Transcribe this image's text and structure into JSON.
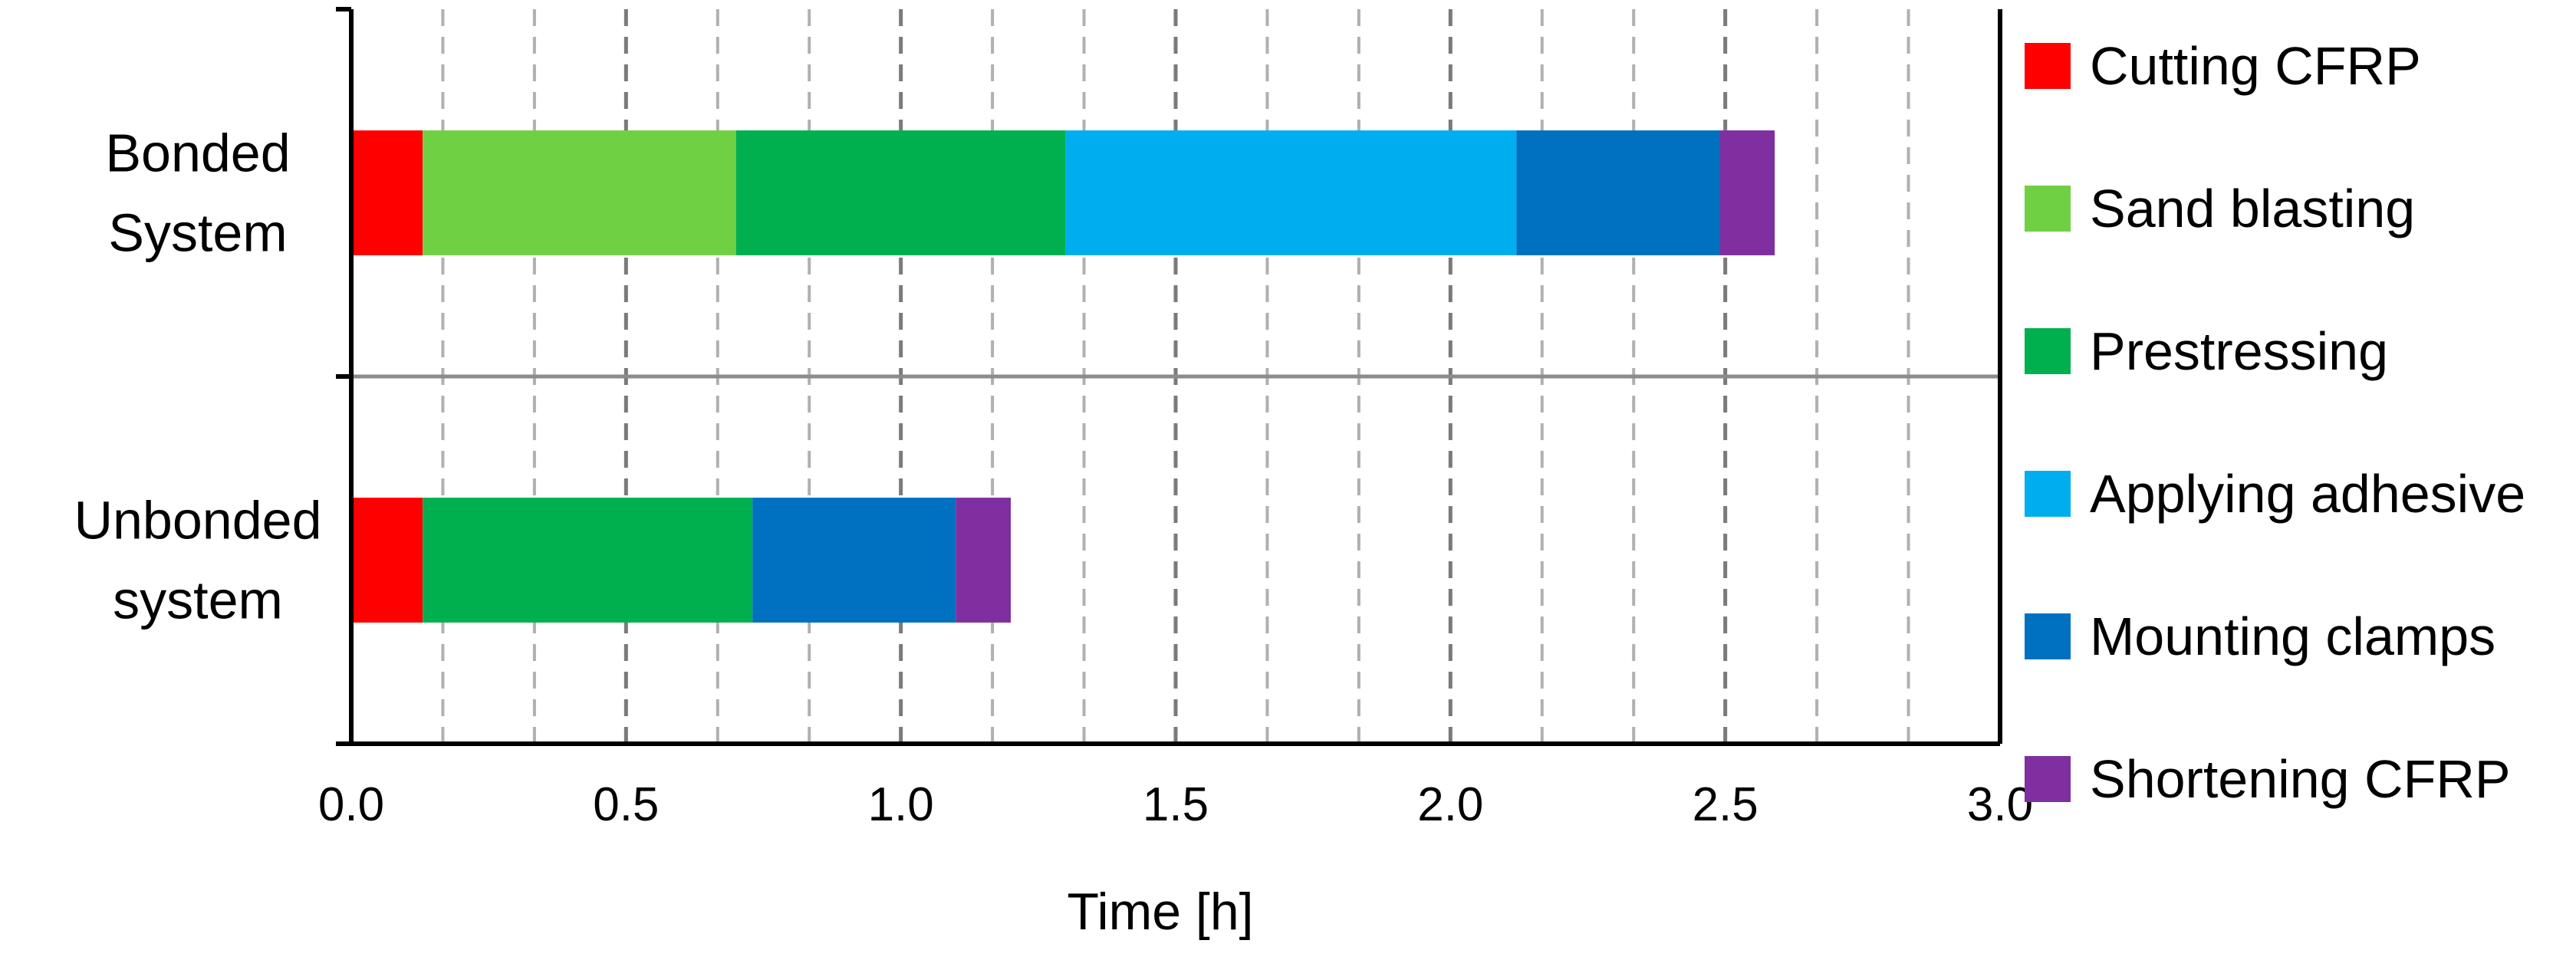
{
  "chart_data": {
    "type": "bar",
    "orientation": "horizontal",
    "stacked": true,
    "xlabel": "Time [h]",
    "xlim": [
      0,
      3.0
    ],
    "x_ticks": [
      "0.0",
      "0.5",
      "1.0",
      "1.5",
      "2.0",
      "2.5",
      "3.0"
    ],
    "grid": "vertical dashed, minor every 1/6 h",
    "legend_position": "right",
    "categories": [
      {
        "lines": [
          "Bonded",
          "System"
        ]
      },
      {
        "lines": [
          "Unbonded",
          "system"
        ]
      }
    ],
    "series": [
      {
        "name": "Cutting CFRP",
        "color": "#FF0000",
        "values": [
          0.13,
          0.13
        ]
      },
      {
        "name": "Sand blasting",
        "color": "#70D044",
        "values": [
          0.57,
          0
        ]
      },
      {
        "name": "Prestressing",
        "color": "#00B04F",
        "values": [
          0.6,
          0.6
        ]
      },
      {
        "name": "Applying adhesive",
        "color": "#00AEEF",
        "values": [
          0.82,
          0
        ]
      },
      {
        "name": "Mounting clamps",
        "color": "#0070C0",
        "values": [
          0.37,
          0.37
        ]
      },
      {
        "name": "Shortening CFRP",
        "color": "#7F2FA0",
        "values": [
          0.1,
          0.1
        ]
      }
    ]
  }
}
